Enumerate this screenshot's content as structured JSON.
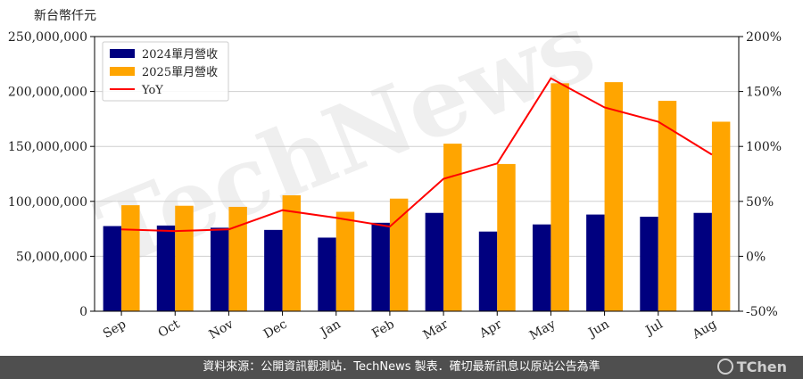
{
  "chart_data": {
    "type": "bar",
    "y_unit_label": "新台幣仟元",
    "categories": [
      "Sep",
      "Oct",
      "Nov",
      "Dec",
      "Jan",
      "Feb",
      "Mar",
      "Apr",
      "May",
      "Jun",
      "Jul",
      "Aug"
    ],
    "series": [
      {
        "name": "2024單月營收",
        "kind": "bar",
        "axis": "left",
        "color": "#00007f",
        "values": [
          77500000,
          78000000,
          76000000,
          74000000,
          67000000,
          80500000,
          89500000,
          72500000,
          79000000,
          88000000,
          86000000,
          89500000
        ]
      },
      {
        "name": "2025單月營收",
        "kind": "bar",
        "axis": "left",
        "color": "#ffa500",
        "values": [
          96500000,
          96000000,
          95000000,
          105500000,
          90500000,
          102500000,
          152500000,
          134000000,
          207500000,
          208500000,
          191500000,
          172500000
        ]
      },
      {
        "name": "YoY",
        "kind": "line",
        "axis": "right",
        "color": "#ff0000",
        "values": [
          24.5,
          23,
          24.5,
          42,
          35,
          27,
          70.5,
          84.5,
          162,
          135.5,
          122.5,
          92.5
        ]
      }
    ],
    "ylim_left": [
      0,
      250000000
    ],
    "ylim_right": [
      -50,
      200
    ],
    "yticks_left": [
      "0",
      "50,000,000",
      "100,000,000",
      "150,000,000",
      "200,000,000",
      "250,000,000"
    ],
    "yticks_right": [
      "-50%",
      "0%",
      "50%",
      "100%",
      "150%",
      "200%"
    ],
    "grid": true,
    "legend_position": "top-left",
    "watermark": "TechNews"
  },
  "footer": {
    "source_text": "資料來源：公開資訊觀測站．TechNews 製表．確切最新訊息以原站公告為準",
    "brand": "TChen"
  }
}
